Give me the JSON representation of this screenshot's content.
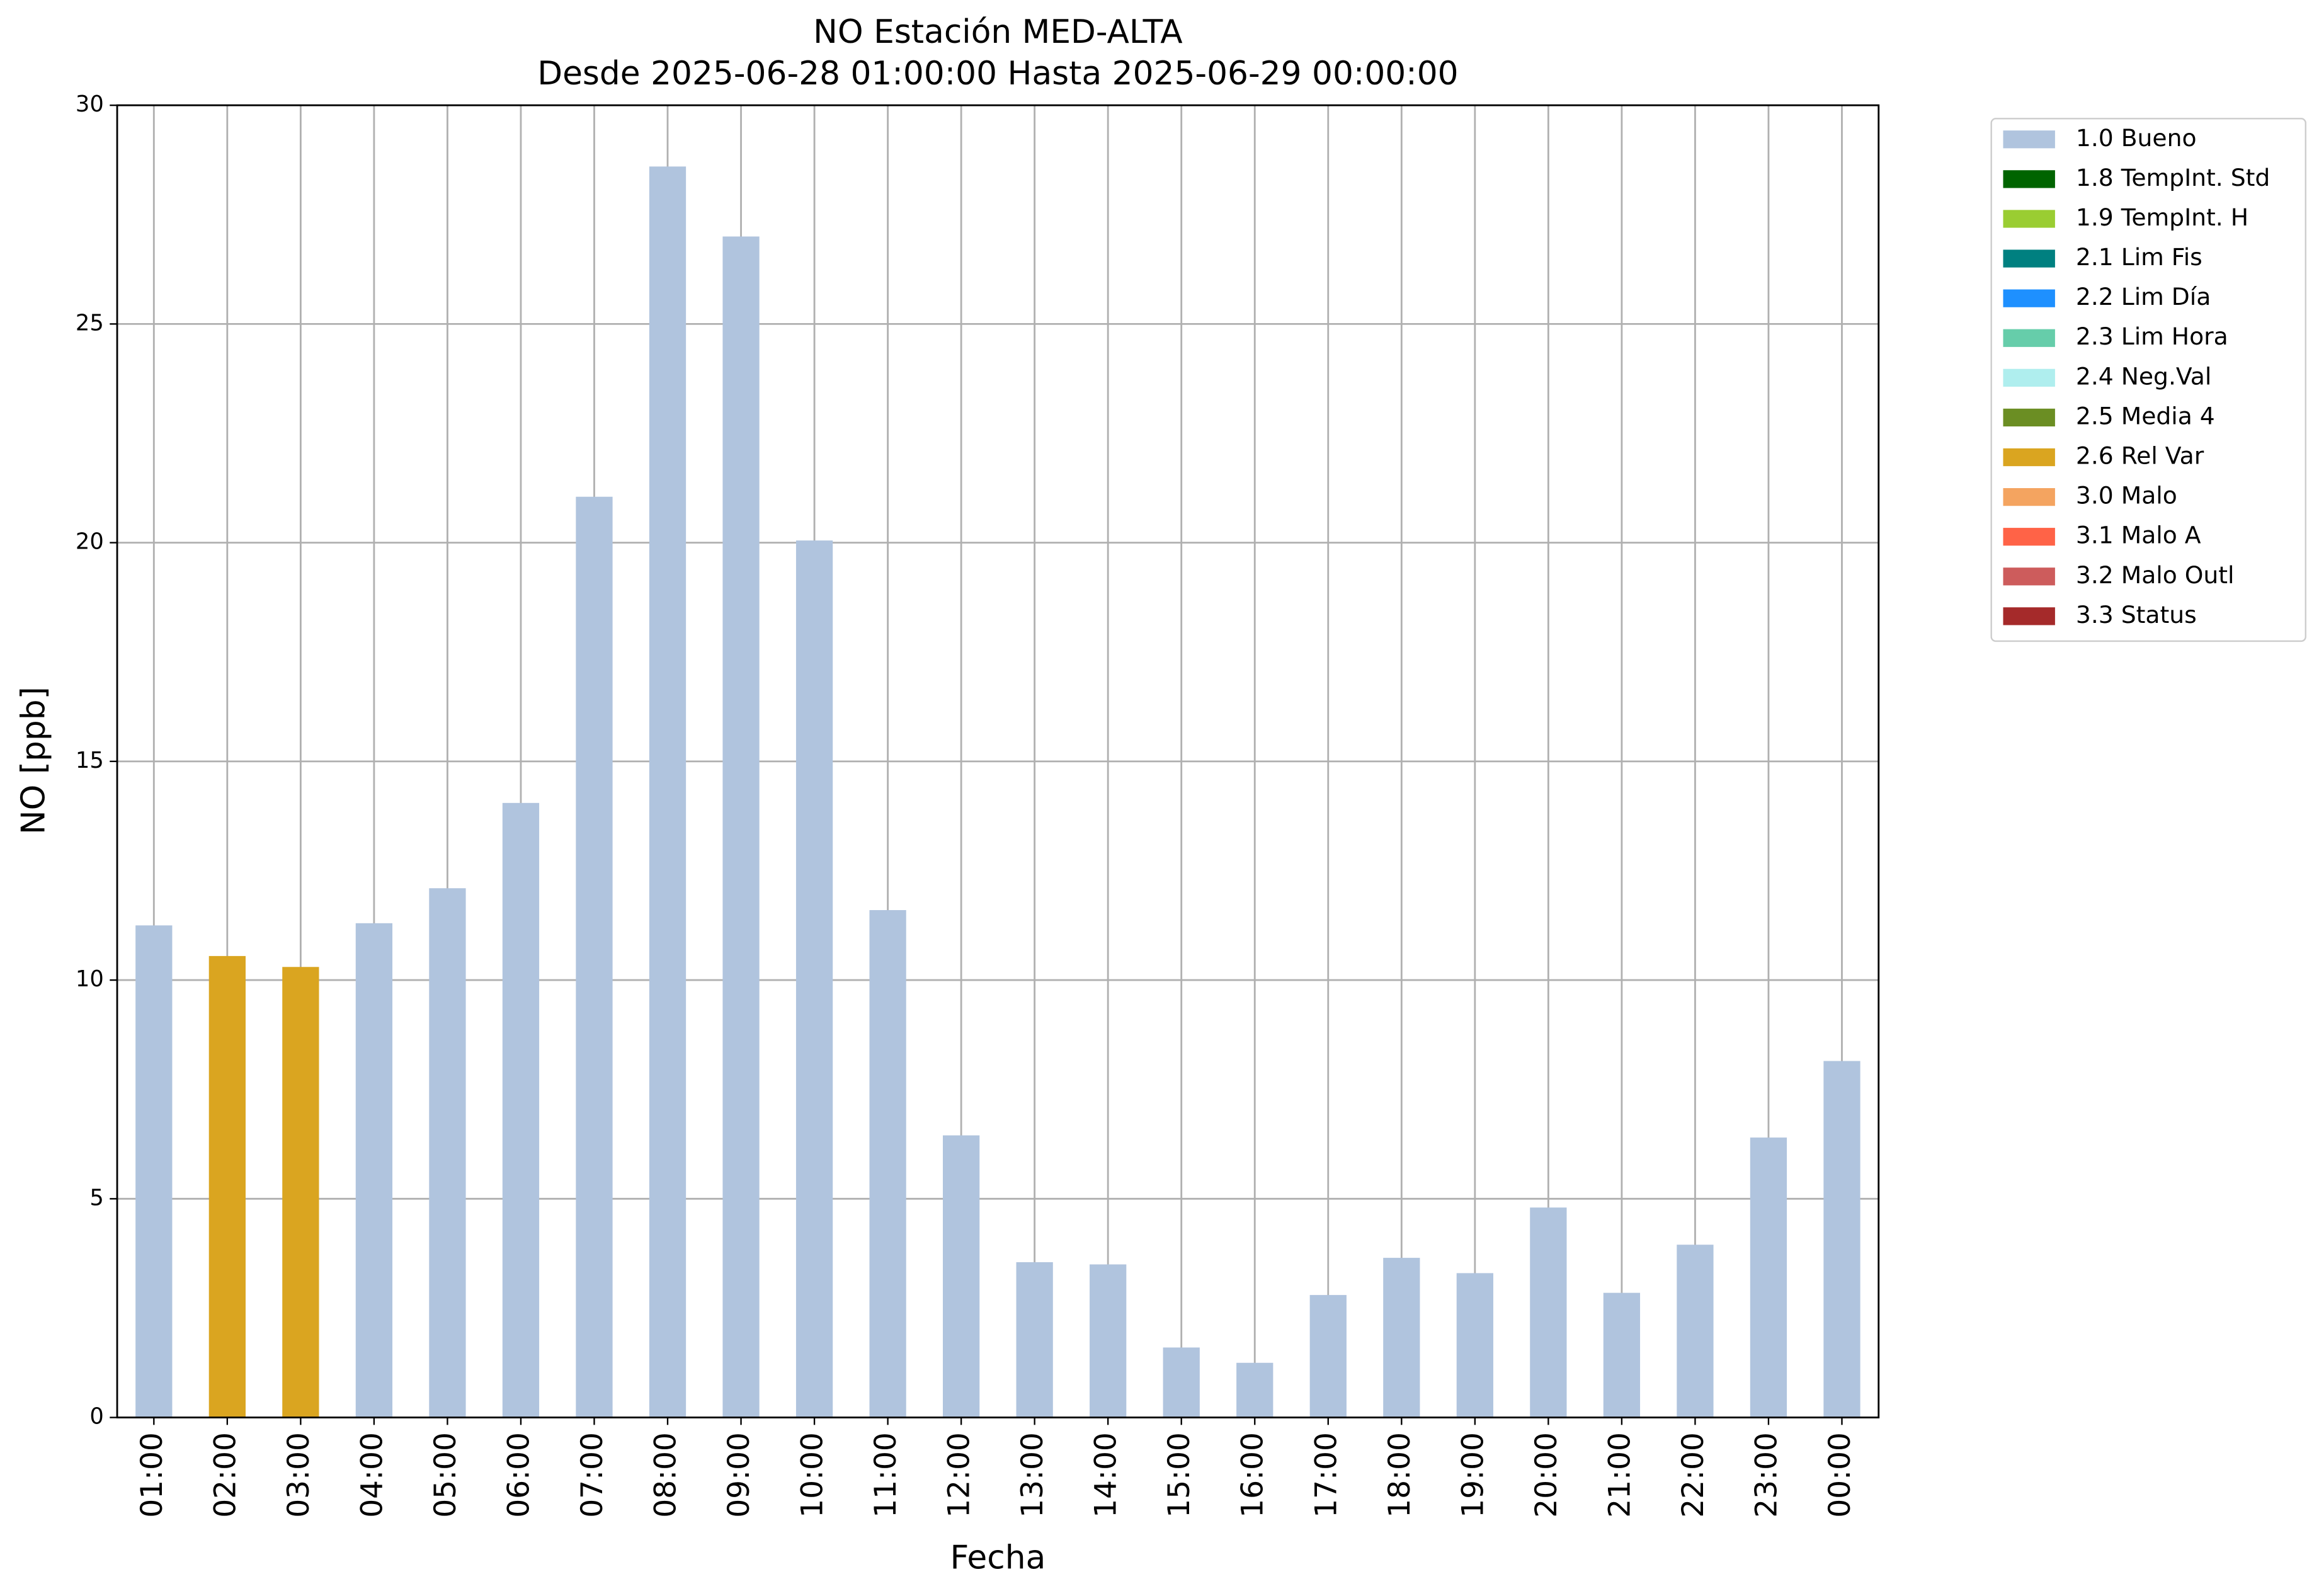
{
  "chart_data": {
    "type": "bar",
    "stacked": true,
    "title": "NO Estación MED-ALTA",
    "subtitle": "Desde 2025-06-28 01:00:00 Hasta 2025-06-29 00:00:00",
    "xlabel": "Fecha",
    "ylabel": "NO [ppb]",
    "categories": [
      "01:00",
      "02:00",
      "03:00",
      "04:00",
      "05:00",
      "06:00",
      "07:00",
      "08:00",
      "09:00",
      "10:00",
      "11:00",
      "12:00",
      "13:00",
      "14:00",
      "15:00",
      "16:00",
      "17:00",
      "18:00",
      "19:00",
      "20:00",
      "21:00",
      "22:00",
      "23:00",
      "00:00"
    ],
    "ylim": [
      0,
      30
    ],
    "yticks": [
      0,
      5,
      10,
      15,
      20,
      25,
      30
    ],
    "grid": true,
    "legend": "outside-right",
    "series": [
      {
        "name": "1.0 Bueno",
        "color": "#b0c4de",
        "values": [
          11.25,
          null,
          null,
          11.3,
          12.1,
          14.05,
          21.05,
          28.6,
          27.0,
          20.05,
          11.6,
          6.45,
          3.55,
          3.5,
          1.6,
          1.25,
          2.8,
          3.65,
          3.3,
          4.8,
          2.85,
          3.95,
          6.4,
          8.15
        ]
      },
      {
        "name": "1.8 TempInt. Std",
        "color": "#006400",
        "values": [
          null,
          null,
          null,
          null,
          null,
          null,
          null,
          null,
          null,
          null,
          null,
          null,
          null,
          null,
          null,
          null,
          null,
          null,
          null,
          null,
          null,
          null,
          null,
          null
        ]
      },
      {
        "name": "1.9 TempInt. H",
        "color": "#9acd32",
        "values": [
          null,
          null,
          null,
          null,
          null,
          null,
          null,
          null,
          null,
          null,
          null,
          null,
          null,
          null,
          null,
          null,
          null,
          null,
          null,
          null,
          null,
          null,
          null,
          null
        ]
      },
      {
        "name": "2.1 Lim Fis",
        "color": "#008080",
        "values": [
          null,
          null,
          null,
          null,
          null,
          null,
          null,
          null,
          null,
          null,
          null,
          null,
          null,
          null,
          null,
          null,
          null,
          null,
          null,
          null,
          null,
          null,
          null,
          null
        ]
      },
      {
        "name": "2.2 Lim Día",
        "color": "#1e90ff",
        "values": [
          null,
          null,
          null,
          null,
          null,
          null,
          null,
          null,
          null,
          null,
          null,
          null,
          null,
          null,
          null,
          null,
          null,
          null,
          null,
          null,
          null,
          null,
          null,
          null
        ]
      },
      {
        "name": "2.3 Lim Hora",
        "color": "#66cdaa",
        "values": [
          null,
          null,
          null,
          null,
          null,
          null,
          null,
          null,
          null,
          null,
          null,
          null,
          null,
          null,
          null,
          null,
          null,
          null,
          null,
          null,
          null,
          null,
          null,
          null
        ]
      },
      {
        "name": "2.4 Neg.Val",
        "color": "#afeeee",
        "values": [
          null,
          null,
          null,
          null,
          null,
          null,
          null,
          null,
          null,
          null,
          null,
          null,
          null,
          null,
          null,
          null,
          null,
          null,
          null,
          null,
          null,
          null,
          null,
          null
        ]
      },
      {
        "name": "2.5 Media 4",
        "color": "#6b8e23",
        "values": [
          null,
          null,
          null,
          null,
          null,
          null,
          null,
          null,
          null,
          null,
          null,
          null,
          null,
          null,
          null,
          null,
          null,
          null,
          null,
          null,
          null,
          null,
          null,
          null
        ]
      },
      {
        "name": "2.6 Rel Var",
        "color": "#daa520",
        "values": [
          null,
          10.55,
          10.3,
          null,
          null,
          null,
          null,
          null,
          null,
          null,
          null,
          null,
          null,
          null,
          null,
          null,
          null,
          null,
          null,
          null,
          null,
          null,
          null,
          null
        ]
      },
      {
        "name": "3.0 Malo",
        "color": "#f4a460",
        "values": [
          null,
          null,
          null,
          null,
          null,
          null,
          null,
          null,
          null,
          null,
          null,
          null,
          null,
          null,
          null,
          null,
          null,
          null,
          null,
          null,
          null,
          null,
          null,
          null
        ]
      },
      {
        "name": "3.1 Malo A",
        "color": "#ff6347",
        "values": [
          null,
          null,
          null,
          null,
          null,
          null,
          null,
          null,
          null,
          null,
          null,
          null,
          null,
          null,
          null,
          null,
          null,
          null,
          null,
          null,
          null,
          null,
          null,
          null
        ]
      },
      {
        "name": "3.2 Malo Outl",
        "color": "#cd5c5c",
        "values": [
          null,
          null,
          null,
          null,
          null,
          null,
          null,
          null,
          null,
          null,
          null,
          null,
          null,
          null,
          null,
          null,
          null,
          null,
          null,
          null,
          null,
          null,
          null,
          null
        ]
      },
      {
        "name": "3.3 Status",
        "color": "#a52a2a",
        "values": [
          null,
          null,
          null,
          null,
          null,
          null,
          null,
          null,
          null,
          null,
          null,
          null,
          null,
          null,
          null,
          null,
          null,
          null,
          null,
          null,
          null,
          null,
          null,
          null
        ]
      }
    ]
  }
}
